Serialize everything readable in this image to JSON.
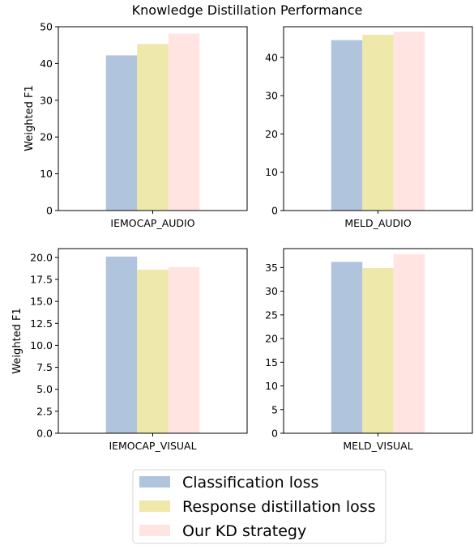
{
  "figure_title": "Knowledge Distillation Performance",
  "ylabel": "Weighted F1",
  "colors": {
    "classification": "#b0c4de",
    "response": "#eee8aa",
    "kd": "#ffe4e1"
  },
  "legend": {
    "placement": "bottom-center",
    "items": [
      {
        "label": "Classification loss",
        "color_key": "classification"
      },
      {
        "label": "Response distillation loss",
        "color_key": "response"
      },
      {
        "label": "Our KD strategy",
        "color_key": "kd"
      }
    ]
  },
  "chart_data": [
    {
      "type": "bar",
      "categories": [
        "IEMOCAP_AUDIO"
      ],
      "series": [
        {
          "name": "Classification loss",
          "values": [
            42.2
          ]
        },
        {
          "name": "Response distillation loss",
          "values": [
            45.3
          ]
        },
        {
          "name": "Our KD strategy",
          "values": [
            48.1
          ]
        }
      ],
      "ylabel": "Weighted F1",
      "ylim": [
        0,
        50
      ],
      "yticks": [
        "0",
        "10",
        "20",
        "30",
        "40",
        "50"
      ],
      "grid": false
    },
    {
      "type": "bar",
      "categories": [
        "MELD_AUDIO"
      ],
      "series": [
        {
          "name": "Classification loss",
          "values": [
            44.5
          ]
        },
        {
          "name": "Response distillation loss",
          "values": [
            45.9
          ]
        },
        {
          "name": "Our KD strategy",
          "values": [
            46.7
          ]
        }
      ],
      "ylabel": "",
      "ylim": [
        0,
        48
      ],
      "yticks": [
        "0",
        "10",
        "20",
        "30",
        "40"
      ],
      "grid": false
    },
    {
      "type": "bar",
      "categories": [
        "IEMOCAP_VISUAL"
      ],
      "series": [
        {
          "name": "Classification loss",
          "values": [
            20.1
          ]
        },
        {
          "name": "Response distillation loss",
          "values": [
            18.6
          ]
        },
        {
          "name": "Our KD strategy",
          "values": [
            18.9
          ]
        }
      ],
      "ylabel": "Weighted F1",
      "ylim": [
        0,
        21
      ],
      "yticks": [
        "0.0",
        "2.5",
        "5.0",
        "7.5",
        "10.0",
        "12.5",
        "15.0",
        "17.5",
        "20.0"
      ],
      "grid": false
    },
    {
      "type": "bar",
      "categories": [
        "MELD_VISUAL"
      ],
      "series": [
        {
          "name": "Classification loss",
          "values": [
            36.2
          ]
        },
        {
          "name": "Response distillation loss",
          "values": [
            34.9
          ]
        },
        {
          "name": "Our KD strategy",
          "values": [
            37.8
          ]
        }
      ],
      "ylabel": "",
      "ylim": [
        0,
        39
      ],
      "yticks": [
        "0",
        "5",
        "10",
        "15",
        "20",
        "25",
        "30",
        "35"
      ],
      "grid": false
    }
  ]
}
